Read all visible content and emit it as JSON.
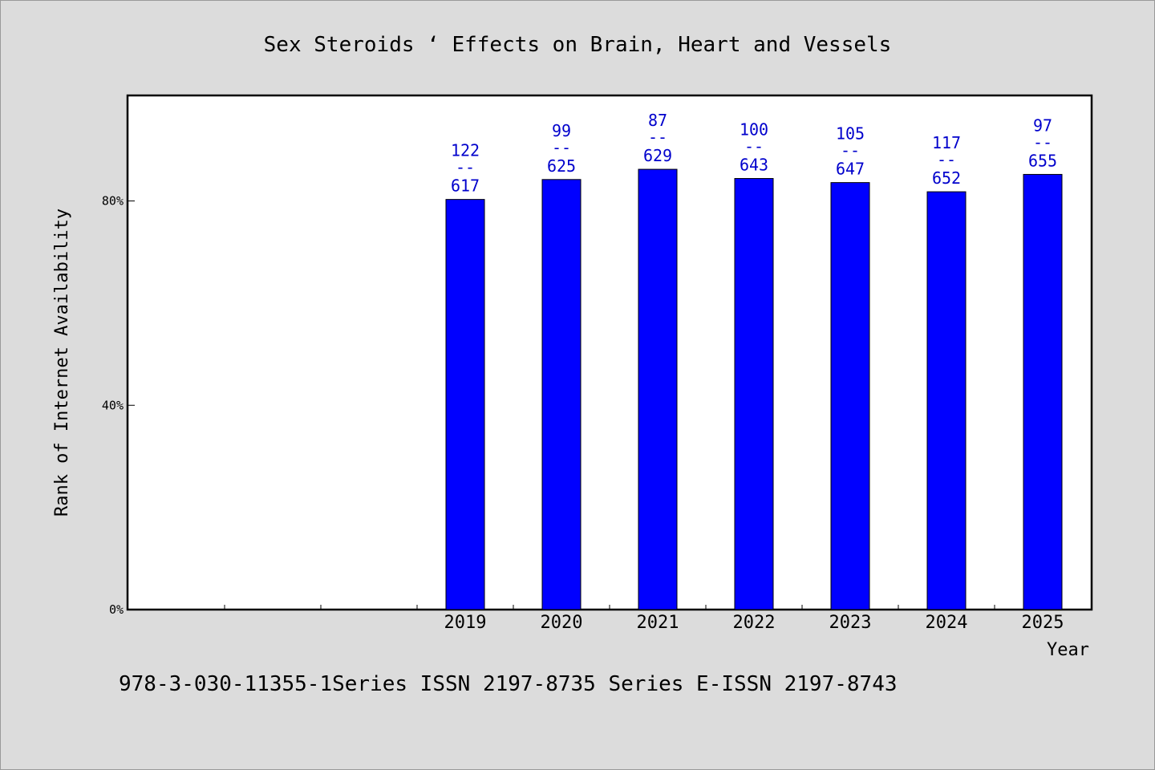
{
  "chart_data": {
    "type": "bar",
    "title": "Sex Steroids ‘ Effects on Brain, Heart and Vessels",
    "xlabel": "Year",
    "ylabel": "Rank of Internet Availability",
    "categories": [
      "",
      "",
      "",
      "2019",
      "2020",
      "2021",
      "2022",
      "2023",
      "2024",
      "2025"
    ],
    "values": [
      null,
      null,
      null,
      80.3,
      84.2,
      86.2,
      84.4,
      83.6,
      81.8,
      85.2
    ],
    "data_labels": [
      null,
      null,
      null,
      {
        "top": "122",
        "sep": "--",
        "bottom": "617"
      },
      {
        "top": "99",
        "sep": "--",
        "bottom": "625"
      },
      {
        "top": "87",
        "sep": "--",
        "bottom": "629"
      },
      {
        "top": "100",
        "sep": "--",
        "bottom": "643"
      },
      {
        "top": "105",
        "sep": "--",
        "bottom": "647"
      },
      {
        "top": "117",
        "sep": "--",
        "bottom": "652"
      },
      {
        "top": "97",
        "sep": "--",
        "bottom": "655"
      }
    ],
    "yticks": [
      {
        "value": 0,
        "label": "0%"
      },
      {
        "value": 40,
        "label": "40%"
      },
      {
        "value": 80,
        "label": "80%"
      }
    ],
    "ylim": [
      0,
      100
    ],
    "grid": false,
    "legend": "none",
    "bar_color": "#0000ff",
    "label_color": "#0000cc"
  },
  "footer": "978-3-030-11355-1Series ISSN 2197-8735 Series E-ISSN 2197-8743"
}
